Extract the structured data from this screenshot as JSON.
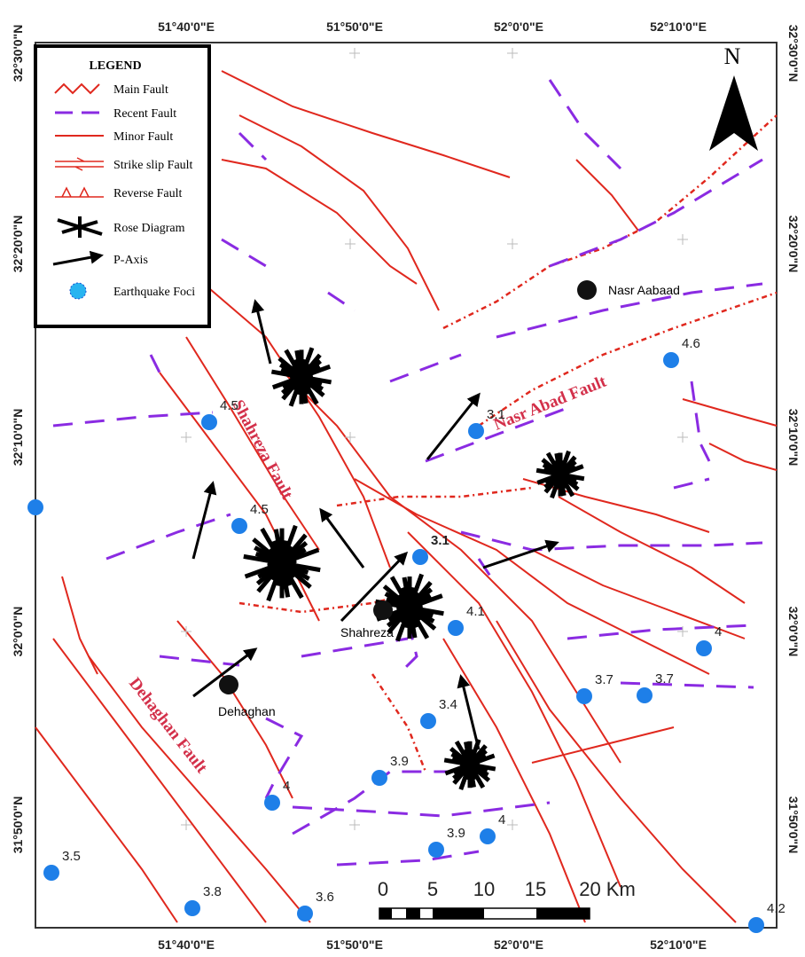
{
  "legend": {
    "title": "LEGEND",
    "items": [
      "Main Fault",
      "Recent Fault",
      "Minor Fault",
      "Strike slip Fault",
      "Reverse Fault",
      "Rose Diagram",
      "P-Axis",
      "Earthquake Foci"
    ]
  },
  "coordinates": {
    "top": [
      "51°40'0\"E",
      "51°50'0\"E",
      "52°0'0\"E",
      "52°10'0\"E"
    ],
    "bottom": [
      "51°40'0\"E",
      "51°50'0\"E",
      "52°0'0\"E",
      "52°10'0\"E"
    ],
    "left": [
      "32°30'0\"N",
      "32°20'0\"N",
      "32°10'0\"N",
      "32°0'0\"N",
      "31°50'0\"N"
    ],
    "right": [
      "32°30'0\"N",
      "32°20'0\"N",
      "32°10'0\"N",
      "32°0'0\"N",
      "31°50'0\"N"
    ]
  },
  "north": "N",
  "places": [
    "Nasr Aabaad",
    "Shahreza",
    "Dehaghan"
  ],
  "faults": [
    "Nasr Abad Fault",
    "Shahreza Fault",
    "Dehaghan Fault"
  ],
  "earthquakes": [
    4.6,
    3.1,
    4.5,
    4.5,
    3.1,
    4.1,
    4,
    3.7,
    3.7,
    3.4,
    3.9,
    4,
    4,
    3.9,
    3.5,
    3.8,
    3.6,
    4.2
  ],
  "scale": [
    "0",
    "5",
    "10",
    "15",
    "20 Km"
  ]
}
